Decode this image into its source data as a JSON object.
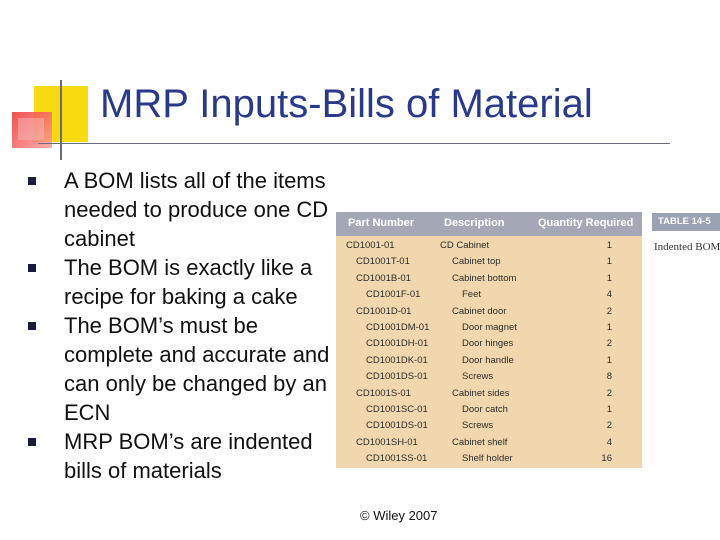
{
  "slide": {
    "title": "MRP Inputs-Bills of Material",
    "bullets": [
      "A BOM lists all of the items needed to produce one CD cabinet",
      "The BOM is exactly like a recipe for baking a cake",
      "The BOM’s must be complete and accurate and can only be changed by an ECN",
      "MRP BOM’s are indented bills of materials"
    ],
    "footer": "© Wiley 2007"
  },
  "table": {
    "badge": "TABLE 14-5",
    "caption": "Indented BOM",
    "headers": [
      "Part Number",
      "Description",
      "Quantity Required"
    ],
    "rows": [
      {
        "part": "CD1001-01",
        "desc": "CD Cabinet",
        "qty": "1",
        "level": 0
      },
      {
        "part": "CD1001T-01",
        "desc": "Cabinet top",
        "qty": "1",
        "level": 1
      },
      {
        "part": "CD1001B-01",
        "desc": "Cabinet bottom",
        "qty": "1",
        "level": 1
      },
      {
        "part": "CD1001F-01",
        "desc": "Feet",
        "qty": "4",
        "level": 2
      },
      {
        "part": "CD1001D-01",
        "desc": "Cabinet door",
        "qty": "2",
        "level": 1
      },
      {
        "part": "CD1001DM-01",
        "desc": "Door magnet",
        "qty": "1",
        "level": 2
      },
      {
        "part": "CD1001DH-01",
        "desc": "Door hinges",
        "qty": "2",
        "level": 2
      },
      {
        "part": "CD1001DK-01",
        "desc": "Door handle",
        "qty": "1",
        "level": 2
      },
      {
        "part": "CD1001DS-01",
        "desc": "Screws",
        "qty": "8",
        "level": 2
      },
      {
        "part": "CD1001S-01",
        "desc": "Cabinet sides",
        "qty": "2",
        "level": 1
      },
      {
        "part": "CD1001SC-01",
        "desc": "Door catch",
        "qty": "1",
        "level": 2
      },
      {
        "part": "CD1001DS-01",
        "desc": "Screws",
        "qty": "2",
        "level": 2
      },
      {
        "part": "CD1001SH-01",
        "desc": "Cabinet shelf",
        "qty": "4",
        "level": 1
      },
      {
        "part": "CD1001SS-01",
        "desc": "Shelf holder",
        "qty": "16",
        "level": 2
      }
    ]
  },
  "colors": {
    "title": "#2a3a8a",
    "table_body": "#f1d7ad",
    "table_header": "#a4a8b6",
    "deco_yellow": "#f8da10",
    "deco_red": "#f03030"
  }
}
